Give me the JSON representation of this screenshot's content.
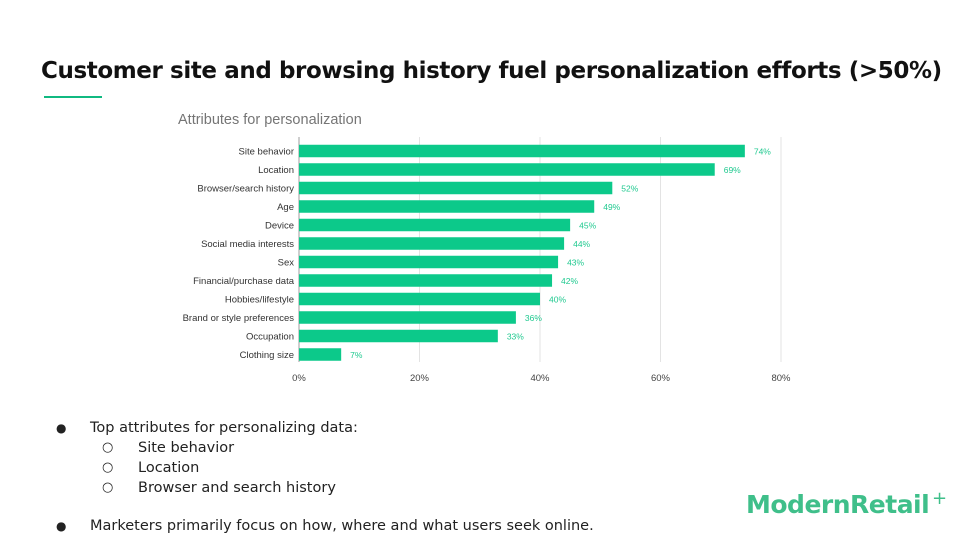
{
  "slide": {
    "title": "Customer site and browsing history fuel personalization efforts (>50%)"
  },
  "chart_data": {
    "type": "bar",
    "orientation": "horizontal",
    "title": "Attributes for personalization",
    "categories": [
      "Site behavior",
      "Location",
      "Browser/search history",
      "Age",
      "Device",
      "Social media interests",
      "Sex",
      "Financial/purchase data",
      "Hobbies/lifestyle",
      "Brand or style preferences",
      "Occupation",
      "Clothing size"
    ],
    "values": [
      74,
      69,
      52,
      49,
      45,
      44,
      43,
      42,
      40,
      36,
      33,
      7
    ],
    "data_labels": [
      "74%",
      "69%",
      "52%",
      "49%",
      "45%",
      "44%",
      "43%",
      "42%",
      "40%",
      "36%",
      "33%",
      "7%"
    ],
    "xlim": [
      0,
      80
    ],
    "x_ticks": [
      0,
      20,
      40,
      60,
      80
    ],
    "x_tick_labels": [
      "0%",
      "20%",
      "40%",
      "60%",
      "80%"
    ],
    "grid": "vertical",
    "bar_color": "#0cc98a",
    "label_color": "#1fc98f"
  },
  "bullets": {
    "first": "Top attributes for personalizing data:",
    "sub": [
      "Site behavior",
      "Location",
      "Browser and search history"
    ],
    "second": "Marketers primarily focus on how, where and what users seek online.",
    "dot": "●",
    "sub_dot": "○"
  },
  "logo": {
    "text": "ModernRetail",
    "plus": "+"
  }
}
